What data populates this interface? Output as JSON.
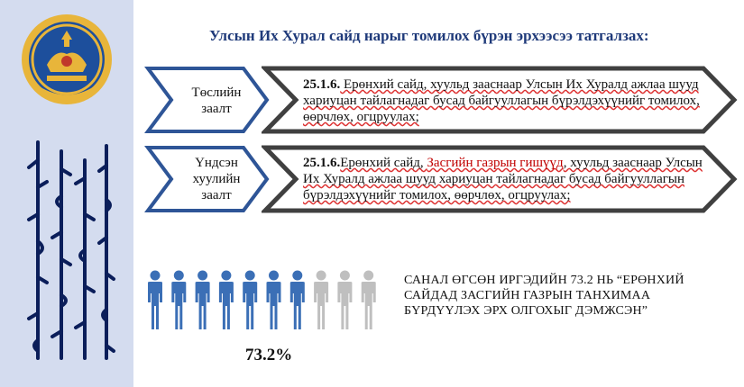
{
  "slide": {
    "title": "Улсын Их Хурал сайд нарыг томилох бүрэн эрхээсээ татгалзах:"
  },
  "rows": [
    {
      "label_lines": [
        "Төслийн",
        "заалт"
      ],
      "article": "25.1.6.",
      "text_before": " Ерөнхий сайд, хуульд зааснаар Улсын Их Хуралд ажлаа шууд хариуцан тайлагнадаг бусад байгууллагын бүрэлдэхүүнийг томилох, өөрчлөх, огцруулах;",
      "highlight": "",
      "text_after": ""
    },
    {
      "label_lines": [
        "Үндсэн",
        "хуулийн",
        "заалт"
      ],
      "article": "25.1.6.",
      "text_before": "Ерөнхий сайд, ",
      "highlight": "Засгийн газрын гишүүд",
      "text_after": ", хуульд зааснаар Улсын Их Хуралд ажлаа шууд хариуцан тайлагнадаг бусад байгууллагын бүрэлдэхүүнийг томилох, өөрчлөх, огцруулах;"
    }
  ],
  "survey": {
    "percent_label": "73.2%",
    "percent_value": 73.2,
    "icons_total": 10,
    "icons_filled": 7,
    "statement": "САНАЛ ӨГСӨН ИРГЭДИЙН 73.2 НЬ “ЕРӨНХИЙ САЙДАД ЗАСГИЙН ГАЗРЫН ТАНХИМАА БҮРДҮҮЛЭХ ЭРХ ОЛГОХЫГ ДЭМЖСЭН”"
  },
  "colors": {
    "sidebar": "#d4dcef",
    "title": "#1f3a7a",
    "chevron_outline": "#2e5597",
    "arrow_outline": "#404040",
    "person_filled": "#3b6fb6",
    "person_empty": "#bfbfbf",
    "emblem_gold": "#e8b53a",
    "emblem_blue": "#1d4f9c",
    "highlight_red": "#c00000"
  },
  "icons": {
    "emblem": "state-emblem-icon",
    "person": "person-icon"
  }
}
